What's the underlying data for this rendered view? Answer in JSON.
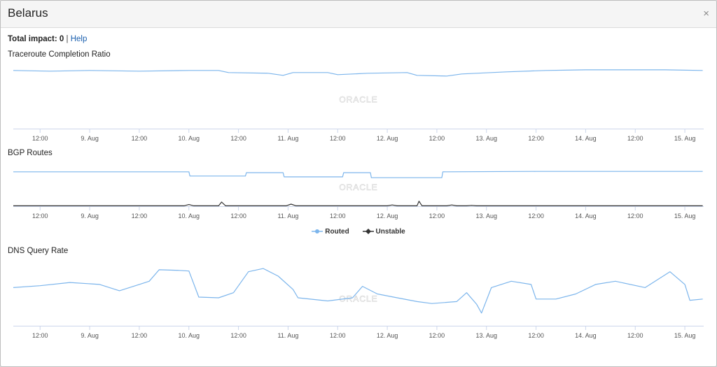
{
  "window": {
    "title": "Belarus",
    "close_glyph": "×"
  },
  "impact": {
    "label": "Total impact:",
    "value": "0",
    "separator": "|",
    "help_label": "Help"
  },
  "watermark": "ORACLE",
  "x_tick_labels": [
    "12:00",
    "9. Aug",
    "12:00",
    "10. Aug",
    "12:00",
    "11. Aug",
    "12:00",
    "12. Aug",
    "12:00",
    "13. Aug",
    "12:00",
    "14. Aug",
    "12:00",
    "15. Aug"
  ],
  "legend": {
    "routed_label": "Routed",
    "unstable_label": "Unstable",
    "routed_color": "#7cb5ec",
    "unstable_color": "#333333"
  },
  "chart_data": [
    {
      "type": "line",
      "title": "Traceroute Completion Ratio",
      "x_unit": "days from 8. Aug 00:00",
      "x_range": [
        0.23,
        7.19
      ],
      "ylim": [
        0,
        100
      ],
      "series": [
        {
          "color": "#7cb5ec",
          "points": [
            [
              0.23,
              84
            ],
            [
              0.6,
              83
            ],
            [
              1.0,
              84
            ],
            [
              1.5,
              83
            ],
            [
              2.0,
              84
            ],
            [
              2.3,
              84
            ],
            [
              2.4,
              81
            ],
            [
              2.8,
              80
            ],
            [
              2.95,
              77
            ],
            [
              3.05,
              81
            ],
            [
              3.4,
              81
            ],
            [
              3.5,
              78
            ],
            [
              3.8,
              80
            ],
            [
              4.2,
              81
            ],
            [
              4.3,
              77
            ],
            [
              4.6,
              76
            ],
            [
              4.75,
              79
            ],
            [
              5.2,
              82
            ],
            [
              5.6,
              84
            ],
            [
              6.0,
              85
            ],
            [
              6.4,
              85
            ],
            [
              6.8,
              85
            ],
            [
              7.18,
              84
            ]
          ]
        }
      ]
    },
    {
      "type": "line",
      "title": "BGP Routes",
      "x_unit": "days from 8. Aug 00:00",
      "x_range": [
        0.23,
        7.19
      ],
      "ylim": [
        0,
        100
      ],
      "series": [
        {
          "name": "Routed",
          "color": "#7cb5ec",
          "points": [
            [
              0.23,
              82
            ],
            [
              1.9,
              82
            ],
            [
              2.0,
              82
            ],
            [
              2.01,
              72
            ],
            [
              2.57,
              72
            ],
            [
              2.58,
              80
            ],
            [
              2.95,
              80
            ],
            [
              2.96,
              70
            ],
            [
              3.55,
              70
            ],
            [
              3.56,
              80
            ],
            [
              3.83,
              80
            ],
            [
              3.84,
              68
            ],
            [
              4.55,
              68
            ],
            [
              4.56,
              82
            ],
            [
              5.5,
              83
            ],
            [
              7.18,
              83
            ]
          ]
        },
        {
          "name": "Unstable",
          "color": "#333333",
          "points": [
            [
              0.23,
              1
            ],
            [
              1.95,
              1
            ],
            [
              2.0,
              4
            ],
            [
              2.05,
              1
            ],
            [
              2.3,
              1
            ],
            [
              2.33,
              10
            ],
            [
              2.37,
              1
            ],
            [
              2.98,
              1
            ],
            [
              3.03,
              5
            ],
            [
              3.08,
              1
            ],
            [
              4.0,
              1
            ],
            [
              4.05,
              3
            ],
            [
              4.1,
              1
            ],
            [
              4.3,
              1
            ],
            [
              4.32,
              12
            ],
            [
              4.35,
              1
            ],
            [
              4.6,
              1
            ],
            [
              4.65,
              3
            ],
            [
              4.7,
              1
            ],
            [
              4.8,
              1
            ],
            [
              4.85,
              2
            ],
            [
              4.9,
              1
            ],
            [
              7.18,
              1
            ]
          ]
        }
      ]
    },
    {
      "type": "line",
      "title": "DNS Query Rate",
      "x_unit": "days from 8. Aug 00:00",
      "x_range": [
        0.23,
        7.19
      ],
      "ylim": [
        0,
        100
      ],
      "series": [
        {
          "color": "#7cb5ec",
          "points": [
            [
              0.23,
              60
            ],
            [
              0.5,
              63
            ],
            [
              0.8,
              68
            ],
            [
              1.1,
              65
            ],
            [
              1.3,
              55
            ],
            [
              1.5,
              65
            ],
            [
              1.6,
              70
            ],
            [
              1.7,
              88
            ],
            [
              1.9,
              87
            ],
            [
              2.0,
              86
            ],
            [
              2.1,
              45
            ],
            [
              2.3,
              44
            ],
            [
              2.45,
              52
            ],
            [
              2.6,
              85
            ],
            [
              2.75,
              90
            ],
            [
              2.9,
              78
            ],
            [
              3.05,
              57
            ],
            [
              3.1,
              44
            ],
            [
              3.4,
              39
            ],
            [
              3.65,
              44
            ],
            [
              3.75,
              62
            ],
            [
              3.9,
              50
            ],
            [
              4.1,
              44
            ],
            [
              4.3,
              38
            ],
            [
              4.45,
              35
            ],
            [
              4.7,
              38
            ],
            [
              4.8,
              52
            ],
            [
              4.9,
              34
            ],
            [
              4.95,
              20
            ],
            [
              5.05,
              60
            ],
            [
              5.25,
              70
            ],
            [
              5.45,
              65
            ],
            [
              5.5,
              42
            ],
            [
              5.7,
              42
            ],
            [
              5.9,
              50
            ],
            [
              6.1,
              65
            ],
            [
              6.3,
              70
            ],
            [
              6.6,
              60
            ],
            [
              6.85,
              85
            ],
            [
              7.0,
              65
            ],
            [
              7.05,
              40
            ],
            [
              7.18,
              42
            ]
          ]
        }
      ]
    }
  ]
}
